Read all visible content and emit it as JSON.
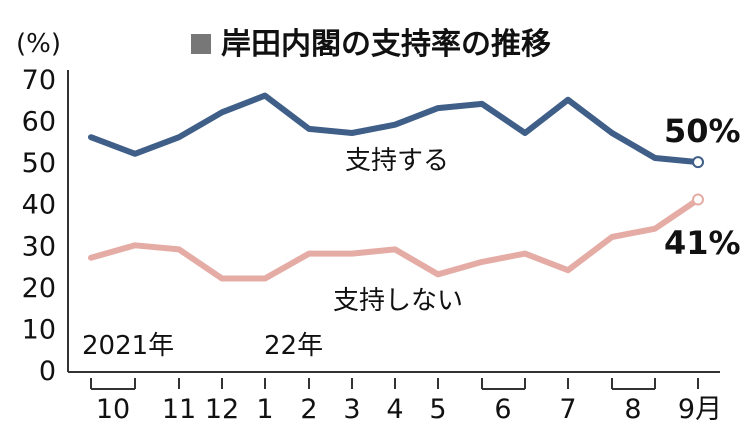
{
  "chart_data": {
    "type": "line",
    "title": "岸田内閣の支持率の推移",
    "ylabel": "(%)",
    "ylim": [
      0,
      70
    ],
    "yticks": [
      "0",
      "10",
      "20",
      "30",
      "40",
      "50",
      "60",
      "70"
    ],
    "x": [
      "10a",
      "10b",
      "11",
      "12",
      "1",
      "2",
      "3",
      "4",
      "5",
      "6a",
      "6b",
      "7",
      "8a",
      "8b",
      "9"
    ],
    "x_tick_labels": [
      "10",
      "11",
      "12",
      "1",
      "2",
      "3",
      "4",
      "5",
      "6",
      "7",
      "8",
      "9月"
    ],
    "year_labels": [
      "2021年",
      "22年"
    ],
    "series": [
      {
        "name": "支持する",
        "color": "#3f5f88",
        "values": [
          56,
          52,
          56,
          62,
          66,
          58,
          57,
          59,
          63,
          64,
          57,
          65,
          57,
          51,
          50
        ],
        "end_label": "50%"
      },
      {
        "name": "支持しない",
        "color": "#e4aca4",
        "values": [
          27,
          30,
          29,
          22,
          22,
          28,
          28,
          29,
          23,
          26,
          28,
          24,
          32,
          34,
          41
        ],
        "end_label": "41%"
      }
    ],
    "grid": false
  }
}
